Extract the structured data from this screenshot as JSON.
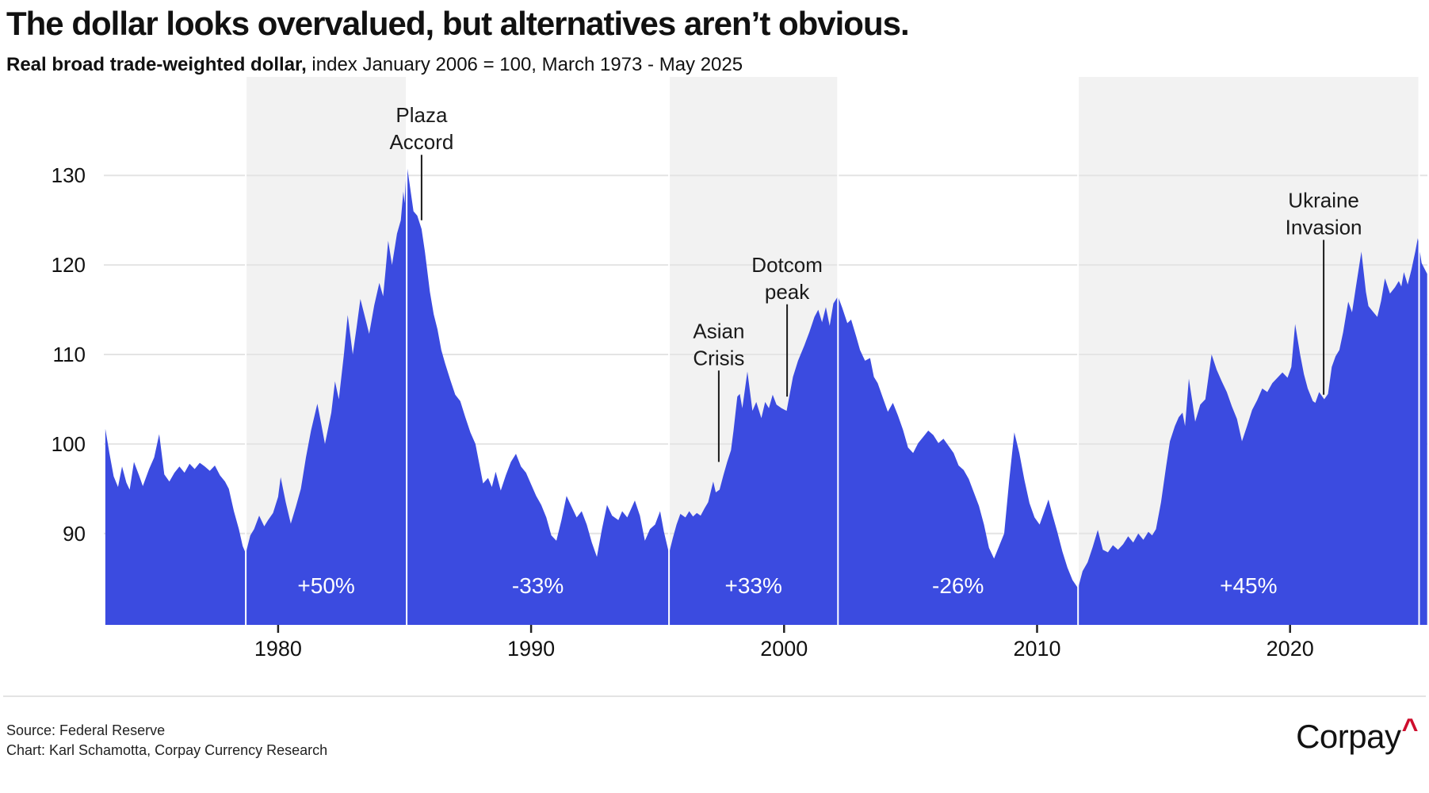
{
  "header": {
    "title": "The dollar looks overvalued, but alternatives aren’t obvious.",
    "subtitle_bold": "Real broad trade-weighted dollar,",
    "subtitle_rest": " index January 2006 = 100, March 1973 - May 2025"
  },
  "footer": {
    "source_line": "Source: Federal Reserve",
    "credit_line": "Chart: Karl Schamotta, Corpay Currency Research",
    "logo_text": "Corpay",
    "logo_caret": "^",
    "logo_caret_color": "#CE0E2D"
  },
  "colors": {
    "area": "#3B4BE0",
    "shaded_band": "#F2F2F2",
    "gridline": "#E4E4E4",
    "boundary_line": "#FFFFFF",
    "segment_label": "#FFFFFF",
    "axis_text": "#111111",
    "annotation": "#1A1A1A",
    "tick_mark": "#222222"
  },
  "chart_data": {
    "type": "area",
    "title": "Real broad trade-weighted dollar",
    "xlabel": "",
    "ylabel": "index January 2006 = 100",
    "x_range": [
      1973.11,
      2025.43
    ],
    "y_range": [
      79.8,
      141.0
    ],
    "x_ticks": [
      1980,
      1990,
      2000,
      2010,
      2020
    ],
    "y_ticks": [
      90,
      100,
      110,
      120,
      130
    ],
    "grid": true,
    "legend": false,
    "segments": [
      {
        "start": 1973.11,
        "end": 1978.72,
        "shaded": false,
        "label": ""
      },
      {
        "start": 1978.72,
        "end": 1985.08,
        "shaded": true,
        "label": "+50%"
      },
      {
        "start": 1985.08,
        "end": 1995.45,
        "shaded": false,
        "label": "-33%"
      },
      {
        "start": 1995.45,
        "end": 2002.13,
        "shaded": true,
        "label": "+33%"
      },
      {
        "start": 2002.13,
        "end": 2011.62,
        "shaded": false,
        "label": "-26%"
      },
      {
        "start": 2011.62,
        "end": 2025.1,
        "shaded": true,
        "label": "+45%"
      },
      {
        "start": 2025.1,
        "end": 2025.43,
        "shaded": false,
        "label": ""
      }
    ],
    "annotations": [
      {
        "id": "plaza-accord",
        "lines": [
          "Plaza",
          "Accord"
        ],
        "year": 1985.67,
        "pointer_from": 132.3,
        "pointer_to": 125.0
      },
      {
        "id": "asian-crisis",
        "lines": [
          "Asian",
          "Crisis"
        ],
        "year": 1997.42,
        "pointer_from": 108.2,
        "pointer_to": 98.0
      },
      {
        "id": "dotcom-peak",
        "lines": [
          "Dotcom",
          "peak"
        ],
        "year": 2000.12,
        "pointer_from": 115.6,
        "pointer_to": 105.3
      },
      {
        "id": "ukraine-invasion",
        "lines": [
          "Ukraine",
          "Invasion"
        ],
        "year": 2021.33,
        "pointer_from": 122.8,
        "pointer_to": 105.5
      }
    ],
    "points": [
      [
        1973.17,
        101.7
      ],
      [
        1973.33,
        99.0
      ],
      [
        1973.5,
        96.4
      ],
      [
        1973.67,
        95.2
      ],
      [
        1973.83,
        97.5
      ],
      [
        1974.0,
        95.7
      ],
      [
        1974.13,
        94.9
      ],
      [
        1974.3,
        98.0
      ],
      [
        1974.5,
        96.5
      ],
      [
        1974.65,
        95.3
      ],
      [
        1974.9,
        97.2
      ],
      [
        1975.1,
        98.5
      ],
      [
        1975.3,
        101.1
      ],
      [
        1975.5,
        96.6
      ],
      [
        1975.7,
        95.8
      ],
      [
        1975.9,
        96.8
      ],
      [
        1976.1,
        97.5
      ],
      [
        1976.3,
        96.8
      ],
      [
        1976.5,
        97.8
      ],
      [
        1976.7,
        97.2
      ],
      [
        1976.9,
        97.9
      ],
      [
        1977.1,
        97.5
      ],
      [
        1977.3,
        97.0
      ],
      [
        1977.5,
        97.6
      ],
      [
        1977.7,
        96.5
      ],
      [
        1977.9,
        95.8
      ],
      [
        1978.05,
        95.0
      ],
      [
        1978.25,
        92.5
      ],
      [
        1978.45,
        90.5
      ],
      [
        1978.6,
        88.6
      ],
      [
        1978.72,
        87.8
      ],
      [
        1978.9,
        89.8
      ],
      [
        1979.05,
        90.5
      ],
      [
        1979.25,
        92.0
      ],
      [
        1979.45,
        90.8
      ],
      [
        1979.6,
        91.5
      ],
      [
        1979.8,
        92.3
      ],
      [
        1980.0,
        94.1
      ],
      [
        1980.1,
        96.3
      ],
      [
        1980.3,
        93.5
      ],
      [
        1980.5,
        91.1
      ],
      [
        1980.7,
        93.0
      ],
      [
        1980.9,
        95.0
      ],
      [
        1981.1,
        98.5
      ],
      [
        1981.3,
        101.5
      ],
      [
        1981.55,
        104.5
      ],
      [
        1981.7,
        102.3
      ],
      [
        1981.85,
        100.0
      ],
      [
        1982.1,
        103.5
      ],
      [
        1982.25,
        107.0
      ],
      [
        1982.4,
        105.0
      ],
      [
        1982.6,
        110.0
      ],
      [
        1982.75,
        114.4
      ],
      [
        1982.95,
        110.0
      ],
      [
        1983.1,
        113.0
      ],
      [
        1983.25,
        116.2
      ],
      [
        1983.45,
        114.0
      ],
      [
        1983.6,
        112.3
      ],
      [
        1983.8,
        115.5
      ],
      [
        1984.0,
        118.0
      ],
      [
        1984.15,
        116.5
      ],
      [
        1984.25,
        119.5
      ],
      [
        1984.35,
        122.7
      ],
      [
        1984.5,
        120.0
      ],
      [
        1984.7,
        123.5
      ],
      [
        1984.85,
        125.0
      ],
      [
        1984.95,
        128.2
      ],
      [
        1985.0,
        126.9
      ],
      [
        1985.08,
        131.3
      ],
      [
        1985.2,
        129.0
      ],
      [
        1985.35,
        126.0
      ],
      [
        1985.5,
        125.5
      ],
      [
        1985.67,
        124.0
      ],
      [
        1985.8,
        121.5
      ],
      [
        1986.0,
        117.0
      ],
      [
        1986.15,
        114.5
      ],
      [
        1986.3,
        112.8
      ],
      [
        1986.45,
        110.5
      ],
      [
        1986.6,
        109.0
      ],
      [
        1986.8,
        107.2
      ],
      [
        1987.0,
        105.5
      ],
      [
        1987.2,
        104.8
      ],
      [
        1987.4,
        103.0
      ],
      [
        1987.6,
        101.3
      ],
      [
        1987.8,
        100.0
      ],
      [
        1988.1,
        95.6
      ],
      [
        1988.3,
        96.2
      ],
      [
        1988.45,
        95.2
      ],
      [
        1988.6,
        96.9
      ],
      [
        1988.8,
        94.8
      ],
      [
        1989.0,
        96.5
      ],
      [
        1989.2,
        98.0
      ],
      [
        1989.4,
        98.9
      ],
      [
        1989.6,
        97.5
      ],
      [
        1989.8,
        96.8
      ],
      [
        1990.0,
        95.5
      ],
      [
        1990.2,
        94.2
      ],
      [
        1990.4,
        93.2
      ],
      [
        1990.6,
        91.8
      ],
      [
        1990.8,
        89.8
      ],
      [
        1991.0,
        89.2
      ],
      [
        1991.2,
        91.5
      ],
      [
        1991.4,
        94.2
      ],
      [
        1991.6,
        93.0
      ],
      [
        1991.8,
        91.8
      ],
      [
        1992.0,
        92.5
      ],
      [
        1992.2,
        91.0
      ],
      [
        1992.4,
        89.0
      ],
      [
        1992.6,
        87.4
      ],
      [
        1992.8,
        90.5
      ],
      [
        1993.0,
        93.2
      ],
      [
        1993.2,
        92.0
      ],
      [
        1993.45,
        91.5
      ],
      [
        1993.6,
        92.5
      ],
      [
        1993.8,
        91.8
      ],
      [
        1994.1,
        93.7
      ],
      [
        1994.3,
        92.0
      ],
      [
        1994.5,
        89.2
      ],
      [
        1994.7,
        90.5
      ],
      [
        1994.9,
        91.0
      ],
      [
        1995.1,
        92.5
      ],
      [
        1995.25,
        90.2
      ],
      [
        1995.45,
        87.8
      ],
      [
        1995.6,
        89.5
      ],
      [
        1995.75,
        91.0
      ],
      [
        1995.9,
        92.2
      ],
      [
        1996.1,
        91.8
      ],
      [
        1996.25,
        92.5
      ],
      [
        1996.4,
        91.9
      ],
      [
        1996.55,
        92.3
      ],
      [
        1996.7,
        92.0
      ],
      [
        1996.85,
        92.8
      ],
      [
        1997.0,
        93.5
      ],
      [
        1997.2,
        95.8
      ],
      [
        1997.3,
        94.6
      ],
      [
        1997.45,
        94.9
      ],
      [
        1997.6,
        96.5
      ],
      [
        1997.75,
        98.0
      ],
      [
        1997.9,
        99.3
      ],
      [
        1998.0,
        101.5
      ],
      [
        1998.15,
        105.3
      ],
      [
        1998.25,
        105.6
      ],
      [
        1998.35,
        104.0
      ],
      [
        1998.55,
        108.1
      ],
      [
        1998.75,
        103.7
      ],
      [
        1998.9,
        104.7
      ],
      [
        1999.1,
        102.9
      ],
      [
        1999.25,
        104.7
      ],
      [
        1999.4,
        104.0
      ],
      [
        1999.55,
        105.5
      ],
      [
        1999.7,
        104.4
      ],
      [
        1999.9,
        104.0
      ],
      [
        2000.1,
        103.7
      ],
      [
        2000.35,
        107.5
      ],
      [
        2000.55,
        109.3
      ],
      [
        2000.8,
        111.0
      ],
      [
        2001.0,
        112.5
      ],
      [
        2001.2,
        114.2
      ],
      [
        2001.35,
        115.0
      ],
      [
        2001.5,
        113.6
      ],
      [
        2001.65,
        115.3
      ],
      [
        2001.8,
        113.2
      ],
      [
        2001.95,
        115.7
      ],
      [
        2002.13,
        116.5
      ],
      [
        2002.3,
        115.2
      ],
      [
        2002.5,
        113.5
      ],
      [
        2002.65,
        113.9
      ],
      [
        2002.85,
        112.0
      ],
      [
        2003.0,
        110.5
      ],
      [
        2003.2,
        109.3
      ],
      [
        2003.4,
        109.6
      ],
      [
        2003.55,
        107.5
      ],
      [
        2003.7,
        106.8
      ],
      [
        2003.9,
        105.2
      ],
      [
        2004.1,
        103.6
      ],
      [
        2004.3,
        104.6
      ],
      [
        2004.5,
        103.2
      ],
      [
        2004.7,
        101.6
      ],
      [
        2004.9,
        99.6
      ],
      [
        2005.1,
        99.0
      ],
      [
        2005.3,
        100.1
      ],
      [
        2005.5,
        100.8
      ],
      [
        2005.7,
        101.5
      ],
      [
        2005.9,
        101.0
      ],
      [
        2006.1,
        100.1
      ],
      [
        2006.3,
        100.6
      ],
      [
        2006.5,
        99.8
      ],
      [
        2006.7,
        99.0
      ],
      [
        2006.9,
        97.6
      ],
      [
        2007.1,
        97.1
      ],
      [
        2007.3,
        96.1
      ],
      [
        2007.5,
        94.6
      ],
      [
        2007.7,
        93.1
      ],
      [
        2007.9,
        91.0
      ],
      [
        2008.1,
        88.4
      ],
      [
        2008.3,
        87.2
      ],
      [
        2008.5,
        88.6
      ],
      [
        2008.7,
        90.0
      ],
      [
        2008.9,
        96.0
      ],
      [
        2009.1,
        101.3
      ],
      [
        2009.3,
        99.0
      ],
      [
        2009.5,
        96.0
      ],
      [
        2009.7,
        93.4
      ],
      [
        2009.9,
        91.8
      ],
      [
        2010.1,
        91.0
      ],
      [
        2010.3,
        92.6
      ],
      [
        2010.45,
        93.8
      ],
      [
        2010.6,
        92.2
      ],
      [
        2010.8,
        90.2
      ],
      [
        2011.0,
        88.0
      ],
      [
        2011.2,
        86.2
      ],
      [
        2011.4,
        84.8
      ],
      [
        2011.62,
        83.9
      ],
      [
        2011.8,
        85.8
      ],
      [
        2012.0,
        86.8
      ],
      [
        2012.2,
        88.5
      ],
      [
        2012.4,
        90.4
      ],
      [
        2012.6,
        88.2
      ],
      [
        2012.8,
        87.9
      ],
      [
        2013.0,
        88.7
      ],
      [
        2013.2,
        88.2
      ],
      [
        2013.4,
        88.8
      ],
      [
        2013.6,
        89.7
      ],
      [
        2013.8,
        89.0
      ],
      [
        2014.0,
        90.0
      ],
      [
        2014.2,
        89.3
      ],
      [
        2014.4,
        90.2
      ],
      [
        2014.55,
        89.8
      ],
      [
        2014.7,
        90.5
      ],
      [
        2014.9,
        93.5
      ],
      [
        2015.1,
        97.5
      ],
      [
        2015.25,
        100.3
      ],
      [
        2015.45,
        102.0
      ],
      [
        2015.6,
        103.0
      ],
      [
        2015.75,
        103.5
      ],
      [
        2015.85,
        102.0
      ],
      [
        2016.0,
        107.3
      ],
      [
        2016.15,
        104.5
      ],
      [
        2016.25,
        102.5
      ],
      [
        2016.45,
        104.4
      ],
      [
        2016.65,
        105.0
      ],
      [
        2016.9,
        110.0
      ],
      [
        2017.1,
        108.3
      ],
      [
        2017.3,
        107.0
      ],
      [
        2017.5,
        105.8
      ],
      [
        2017.7,
        104.2
      ],
      [
        2017.9,
        102.8
      ],
      [
        2018.1,
        100.3
      ],
      [
        2018.3,
        102.0
      ],
      [
        2018.5,
        103.8
      ],
      [
        2018.7,
        104.9
      ],
      [
        2018.9,
        106.2
      ],
      [
        2019.1,
        105.8
      ],
      [
        2019.3,
        106.8
      ],
      [
        2019.5,
        107.4
      ],
      [
        2019.7,
        108.0
      ],
      [
        2019.9,
        107.4
      ],
      [
        2020.05,
        108.6
      ],
      [
        2020.2,
        113.4
      ],
      [
        2020.4,
        110.0
      ],
      [
        2020.55,
        107.8
      ],
      [
        2020.7,
        106.2
      ],
      [
        2020.9,
        104.8
      ],
      [
        2021.0,
        104.6
      ],
      [
        2021.15,
        105.8
      ],
      [
        2021.35,
        105.0
      ],
      [
        2021.5,
        105.6
      ],
      [
        2021.65,
        108.6
      ],
      [
        2021.8,
        109.8
      ],
      [
        2021.95,
        110.5
      ],
      [
        2022.1,
        112.5
      ],
      [
        2022.3,
        115.9
      ],
      [
        2022.45,
        114.7
      ],
      [
        2022.6,
        117.5
      ],
      [
        2022.82,
        121.5
      ],
      [
        2023.0,
        117.0
      ],
      [
        2023.1,
        115.4
      ],
      [
        2023.3,
        114.7
      ],
      [
        2023.45,
        114.2
      ],
      [
        2023.6,
        116.0
      ],
      [
        2023.75,
        118.5
      ],
      [
        2023.95,
        116.8
      ],
      [
        2024.15,
        117.5
      ],
      [
        2024.3,
        118.2
      ],
      [
        2024.4,
        117.6
      ],
      [
        2024.5,
        119.2
      ],
      [
        2024.65,
        117.8
      ],
      [
        2024.8,
        119.5
      ],
      [
        2024.95,
        121.5
      ],
      [
        2025.05,
        123.0
      ],
      [
        2025.2,
        120.2
      ],
      [
        2025.42,
        119.0
      ]
    ]
  }
}
